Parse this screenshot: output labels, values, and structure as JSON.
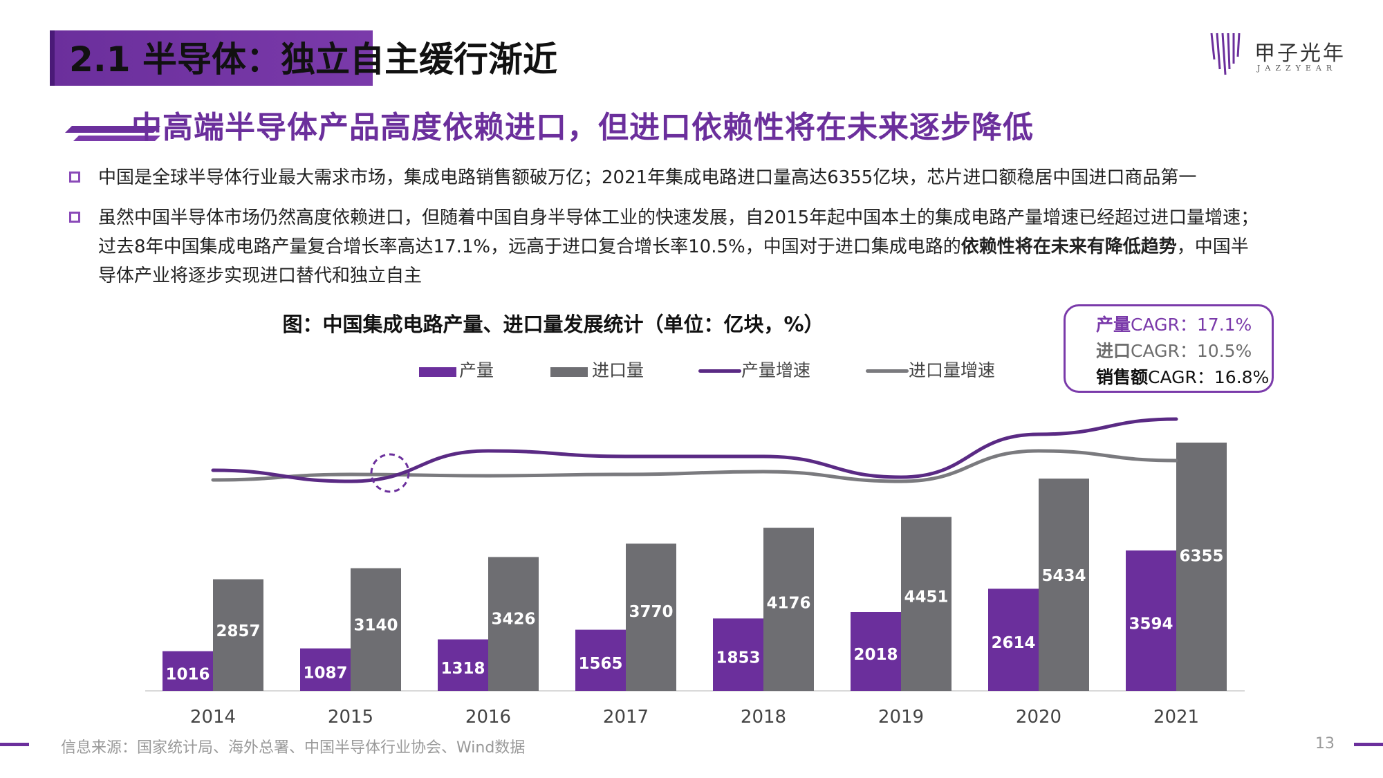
{
  "header": {
    "title": "2.1 半导体：独立自主缓行渐近",
    "logo_cn": "甲子光年",
    "logo_en": "JAZZYEAR"
  },
  "subtitle": "中高端半导体产品高度依赖进口，但进口依赖性将在未来逐步降低",
  "bullets": [
    {
      "text": "中国是全球半导体行业最大需求市场，集成电路销售额破万亿；2021年集成电路进口量高达6355亿块，芯片进口额稳居中国进口商品第一"
    },
    {
      "text_line1": "虽然中国半导体市场仍然高度依赖进口，但随着中国自身半导体工业的快速发展，自2015年起中国本土的集成电路产量增速已经超过进口量增速；",
      "text_line2a": "过去8年中国集成电路产量复合增长率高达17.1%，远高于进口复合增长率10.5%，中国对于进口集成电路的",
      "text_line2_bold": "依赖性将在未来有降低趋势",
      "text_line2b": "，中国半",
      "text_line3": "导体产业将逐步实现进口替代和独立自主"
    }
  ],
  "cagr": {
    "production_label": "产量",
    "production_value": "CAGR：17.1%",
    "import_label": "进口",
    "import_value": "CAGR：10.5%",
    "sales_label": "销售额",
    "sales_value": "CAGR：16.8%"
  },
  "chart_data": {
    "type": "bar",
    "title": "图：中国集成电路产量、进口量发展统计（单位：亿块，%）",
    "categories": [
      "2014",
      "2015",
      "2016",
      "2017",
      "2018",
      "2019",
      "2020",
      "2021"
    ],
    "series": [
      {
        "name": "产量",
        "color": "#6b2f9c",
        "values": [
          1016,
          1087,
          1318,
          1565,
          1853,
          2018,
          2614,
          3594
        ]
      },
      {
        "name": "进口量",
        "color": "#6e6e72",
        "values": [
          2857,
          3140,
          3426,
          3770,
          4176,
          4451,
          5434,
          6355
        ]
      }
    ],
    "line_series": [
      {
        "name": "产量增速",
        "color": "#5a2a84"
      },
      {
        "name": "进口量增速",
        "color": "#7a7a7e"
      }
    ],
    "ylim": [
      0,
      7000
    ],
    "grid": false,
    "legend_position": "top"
  },
  "footer": {
    "source": "信息来源：国家统计局、海外总署、中国半导体行业协会、Wind数据",
    "page": "13"
  }
}
